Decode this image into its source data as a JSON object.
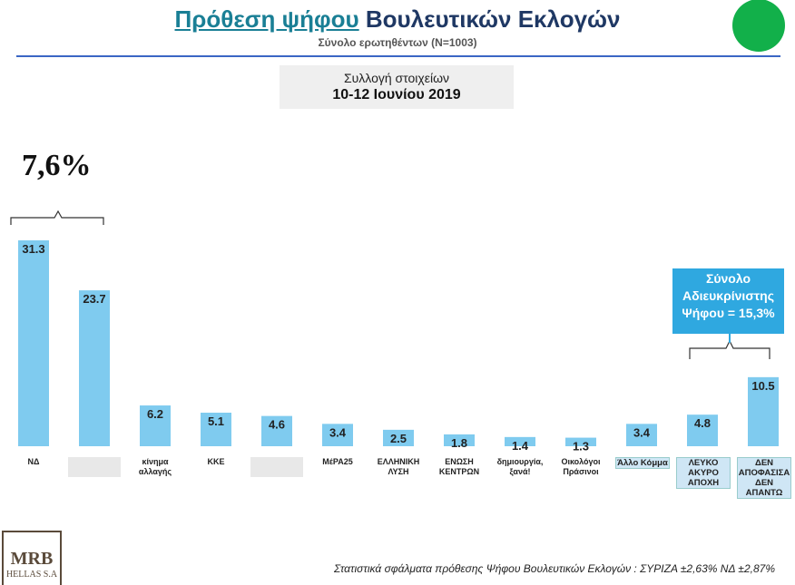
{
  "chart_data": {
    "type": "bar",
    "title_highlight": "Πρόθεση ψήφου",
    "title": "Βουλευτικών Εκλογών",
    "subtitle": "Σύνολο ερωτηθέντων (Ν=1003)",
    "period_label": "Συλλογή στοιχείων",
    "period": "10-12 Ιουνίου 2019",
    "bracket_annotation": "7,6%",
    "undecided_annotation": "Σύνολο Αδιευκρίνιστης Ψήφου = 15,3%",
    "footnote": "Στατιστικά σφάλματα πρόθεσης Ψήφου Βουλευτικών Εκλογών : ΣΥΡΙΖΑ ±2,63% ΝΔ ±2,87%",
    "logo": "MRB",
    "logo_sub": "HELLAS S.A",
    "categories": [
      "ΝΔ",
      null,
      "κίνημα αλλαγής",
      "ΚΚΕ",
      null,
      "ΜέΡΑ25",
      "ΕΛΛΗΝΙΚΗ ΛΥΣΗ",
      "ΕΝΩΣΗ ΚΕΝΤΡΩΝ",
      "δημιουργία, ξανά!",
      "Οικολόγοι Πράσινοι",
      "Άλλο Κόμμα",
      "ΛΕΥΚΟ ΑΚΥΡΟ ΑΠΟΧΗ",
      "ΔΕΝ ΑΠΟΦΑΣΙΣΑ ΔΕΝ ΑΠΑΝΤΩ"
    ],
    "values": [
      31.3,
      23.7,
      6.2,
      5.1,
      4.6,
      3.4,
      2.5,
      1.8,
      1.4,
      1.3,
      3.4,
      4.8,
      10.5
    ],
    "color": "#7fcbef"
  }
}
